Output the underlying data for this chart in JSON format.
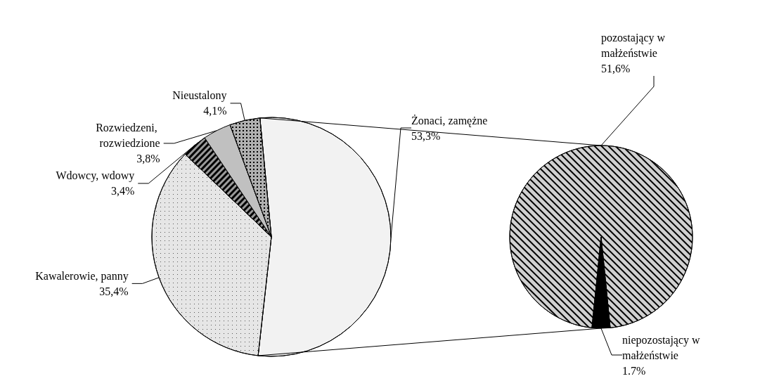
{
  "chart_data": [
    {
      "type": "pie",
      "categories": [
        "Żonaci, zamężne",
        "Kawalerowie, panny",
        "Wdowcy, wdowy",
        "Rozwiedzeni, rozwiedzione",
        "Nieustalony"
      ],
      "values": [
        53.3,
        35.4,
        3.4,
        3.8,
        4.1
      ],
      "value_labels": [
        "53,3%",
        "35,4%",
        "3,4%",
        "3,8%",
        "4,1%"
      ],
      "colors": [
        "#f2f2f2",
        "#e6e6e6",
        "#9a9a9a",
        "#c0c0c0",
        "#b0b0b0"
      ],
      "legend": false
    },
    {
      "type": "pie",
      "categories": [
        "pozostający w małżeństwie",
        "niepozostający w małżeństwie"
      ],
      "values": [
        51.6,
        1.7
      ],
      "value_labels": [
        "51,6%",
        "1.7%"
      ],
      "colors": [
        "#d0d0d0",
        "#000000"
      ],
      "legend": false
    }
  ]
}
